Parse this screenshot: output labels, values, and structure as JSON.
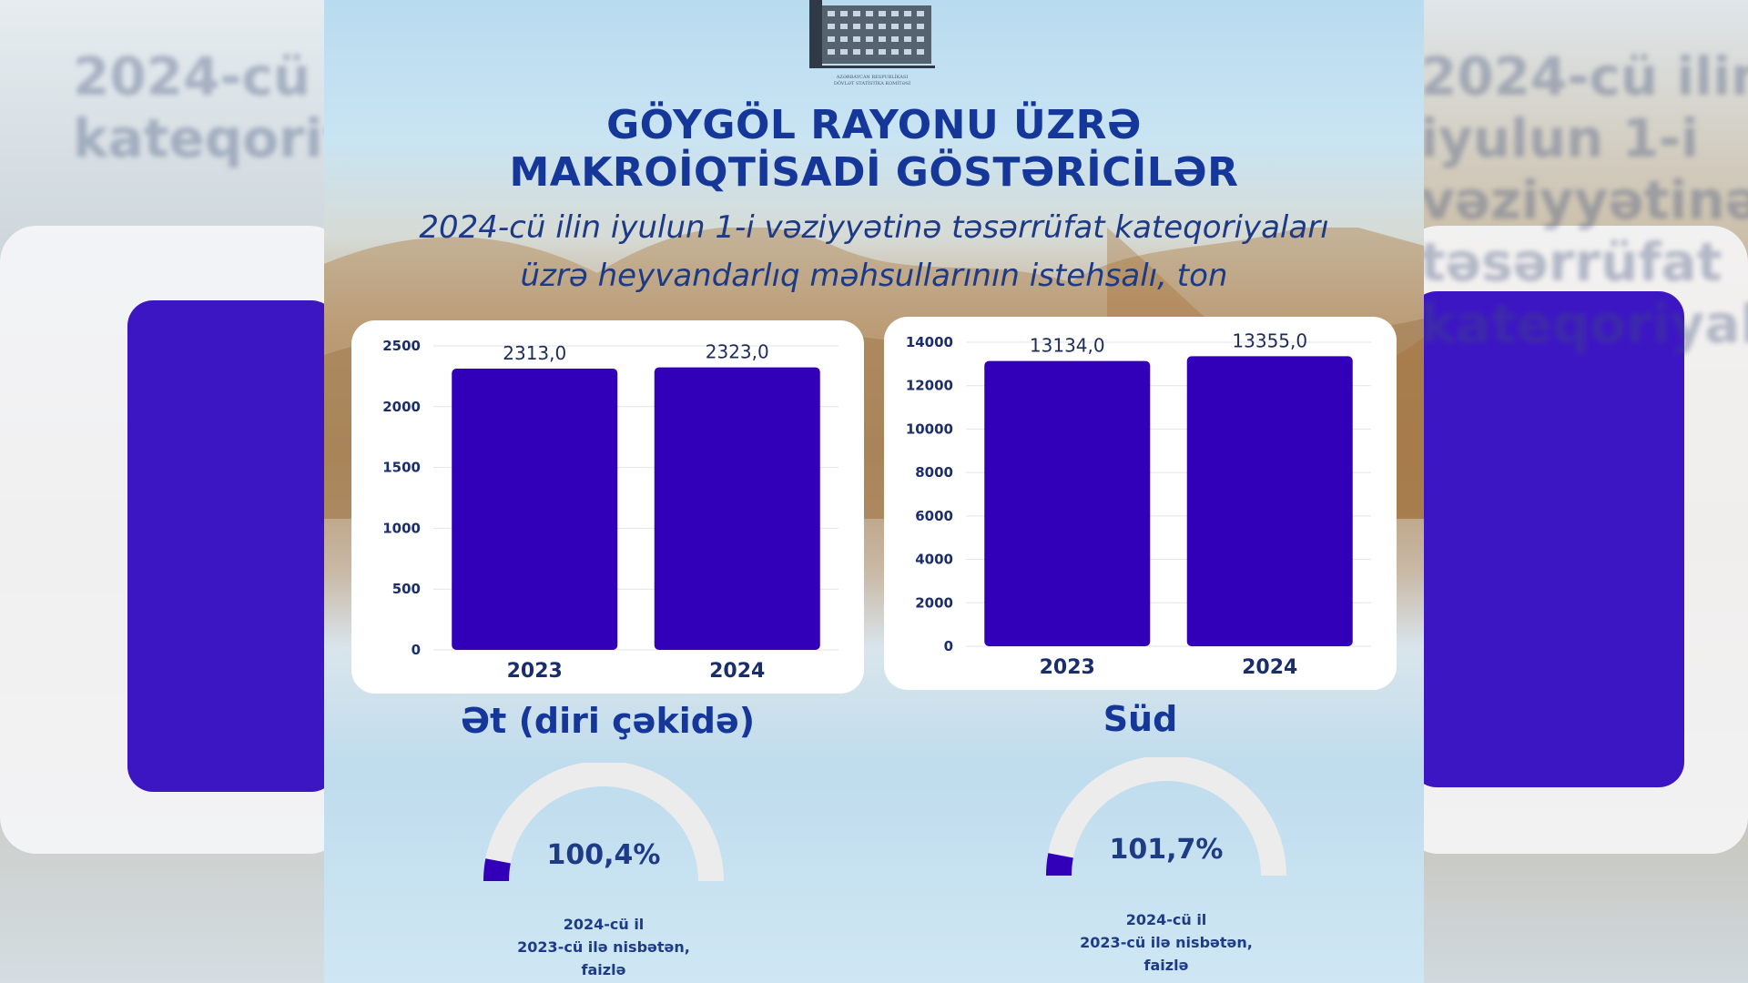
{
  "logo": {
    "caption_line1": "AZƏRBAYCAN RESPUBLİKASI",
    "caption_line2": "DÖVLƏT STATİSTİKA KOMİTƏSİ"
  },
  "header": {
    "title_line1": "GÖYGÖL RAYONU ÜZRƏ",
    "title_line2": "MAKROİQTİSADİ GÖSTƏRİCİLƏR",
    "subtitle_line1": "2024-cü ilin iyulun 1-i vəziyyətinə təsərrüfat kateqoriyaları",
    "subtitle_line2": "üzrə heyvandarlıq məhsullarının istehsalı, ton"
  },
  "colors": {
    "bar": "#3100b8",
    "title": "#15379a",
    "axis_text": "#1a2e6b",
    "gauge_track": "#ececec"
  },
  "chart_data": [
    {
      "type": "bar",
      "title": "Ət (diri çəkidə)",
      "categories": [
        "2023",
        "2024"
      ],
      "values": [
        2313.0,
        2323.0
      ],
      "value_labels": [
        "2313,0",
        "2323,0"
      ],
      "ylim": [
        0,
        2500
      ],
      "yticks": [
        0,
        500,
        1000,
        1500,
        2000,
        2500
      ],
      "grid": true
    },
    {
      "type": "bar",
      "title": "Süd",
      "categories": [
        "2023",
        "2024"
      ],
      "values": [
        13134.0,
        13355.0
      ],
      "value_labels": [
        "13134,0",
        "13355,0"
      ],
      "ylim": [
        0,
        14000
      ],
      "yticks": [
        0,
        2000,
        4000,
        6000,
        8000,
        10000,
        12000,
        14000
      ],
      "grid": true
    }
  ],
  "gauges": [
    {
      "value_label": "100,4%",
      "fill_fraction": 0.06
    },
    {
      "value_label": "101,7%",
      "fill_fraction": 0.06
    }
  ],
  "note": {
    "line1": "2024-cü il",
    "line2": "2023-cü ilə nisbətən,",
    "line3": "faizlə"
  }
}
